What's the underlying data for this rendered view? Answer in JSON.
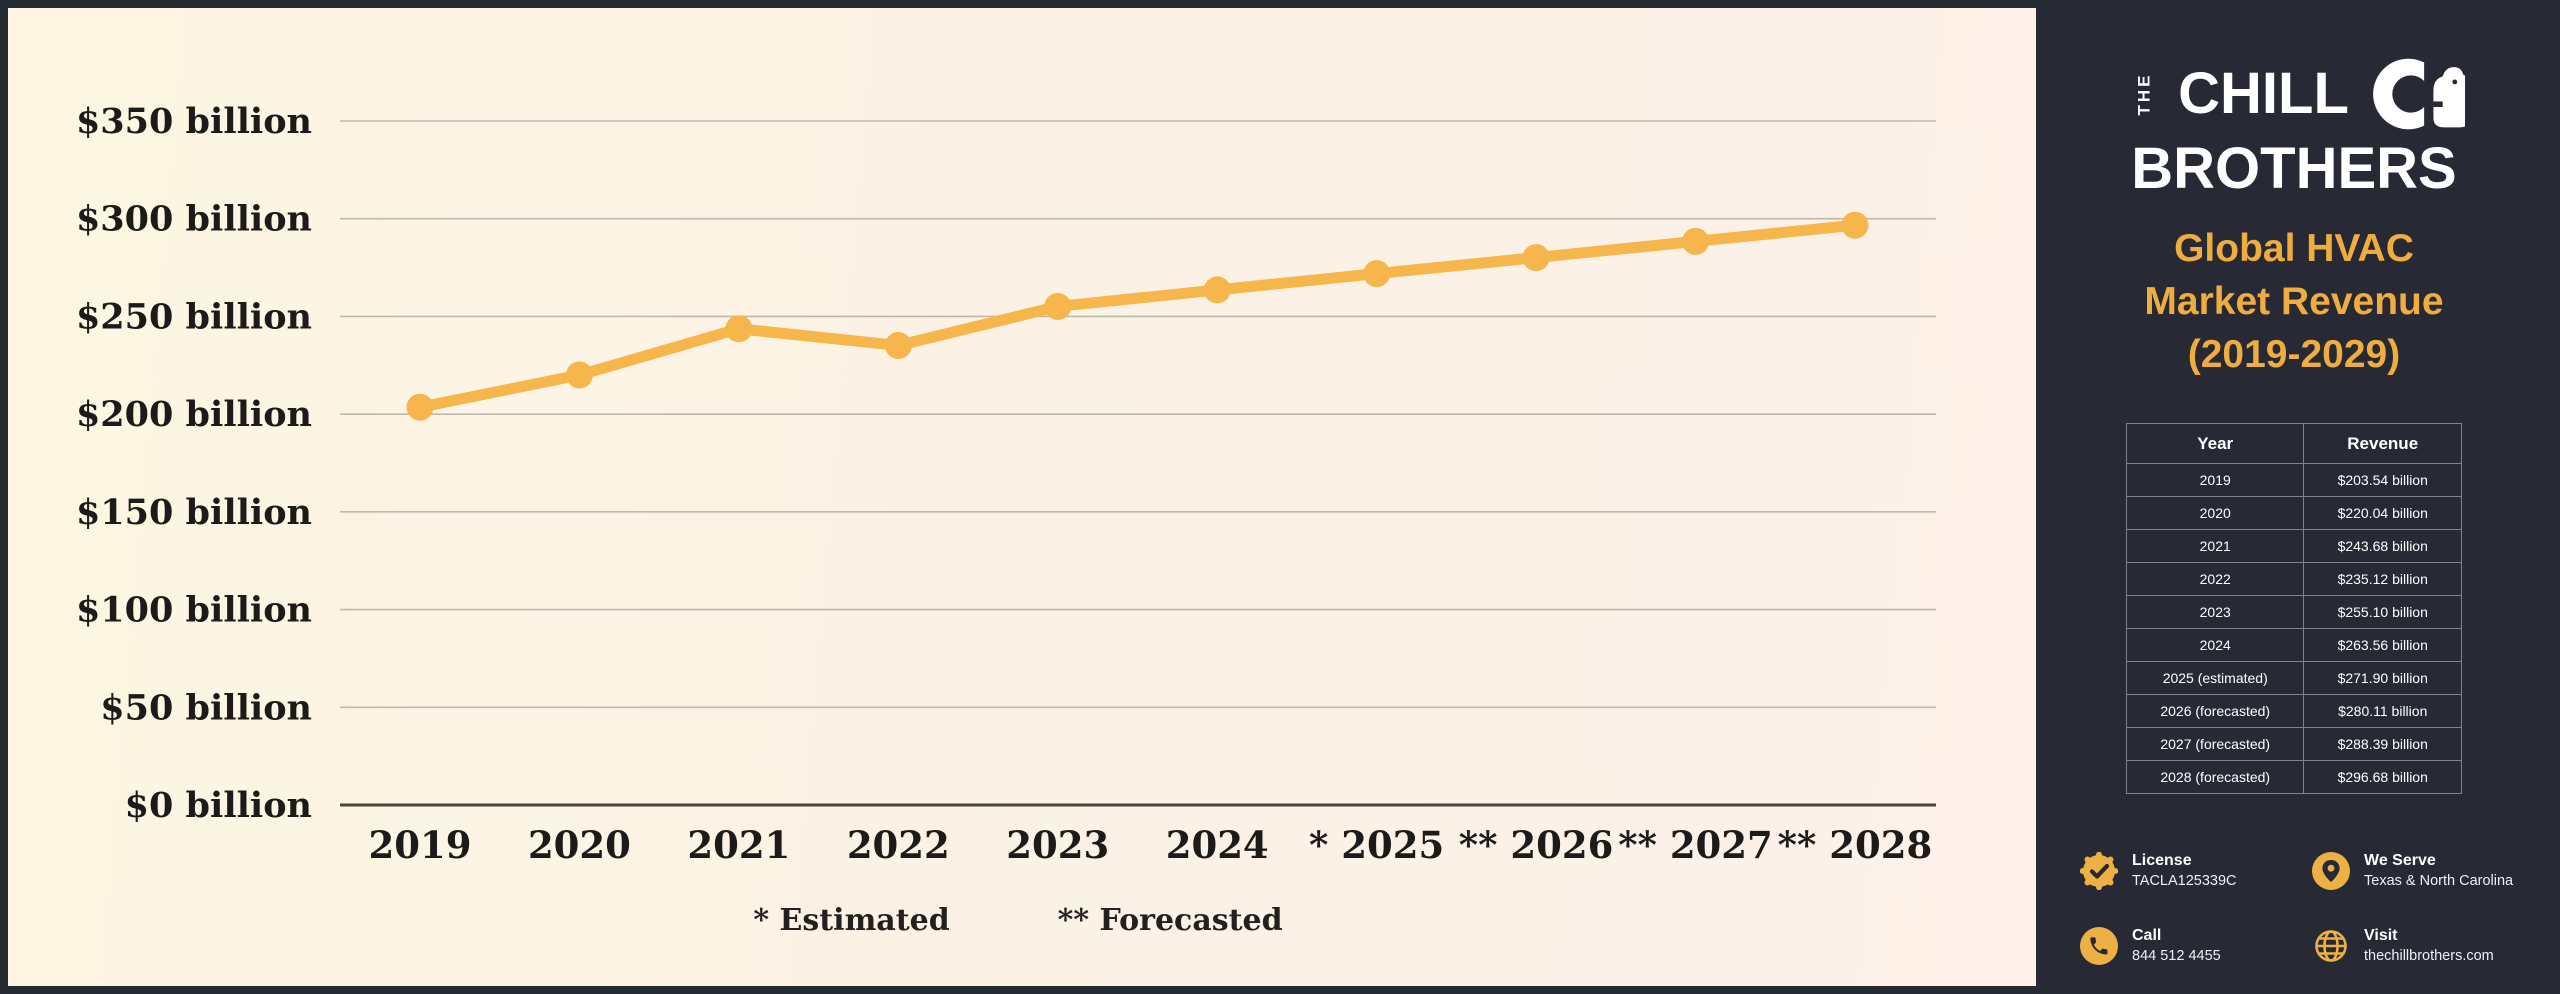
{
  "chart_data": {
    "type": "line",
    "title": "Global HVAC Market Revenue (2019-2029)",
    "categories": [
      "2019",
      "2020",
      "2021",
      "2022",
      "2023",
      "2024",
      "2025",
      "2026",
      "2027",
      "2028"
    ],
    "x_tick_labels": [
      "2019",
      "2020",
      "2021",
      "2022",
      "2023",
      "2024",
      "* 2025",
      "** 2026",
      "** 2027",
      "** 2028"
    ],
    "series": [
      {
        "name": "Global HVAC market revenue",
        "unit": "$ billion",
        "values": [
          203.54,
          220.04,
          243.68,
          235.12,
          255.1,
          263.56,
          271.9,
          280.11,
          288.39,
          296.68
        ]
      }
    ],
    "yticks": [
      0,
      50,
      100,
      150,
      200,
      250,
      300,
      350
    ],
    "ytick_label_prefix": "$",
    "ytick_label_suffix": " billion",
    "ylim": [
      0,
      380
    ],
    "grid": true,
    "legend": {
      "position": "bottom",
      "items": [
        "* Estimated",
        "** Forecasted"
      ]
    },
    "line_color": "#f7b64c",
    "marker_color": "#f7b64c",
    "grid_color": "#bfb8ac",
    "axis_color": "#4b453c",
    "axis_text_color": "#1c1b19"
  },
  "panel": {
    "logo": {
      "the": "THE",
      "line1": "CHILL",
      "line2": "BROTHERS",
      "icon": "chill-brothers-bear-icon"
    },
    "title_lines": [
      "Global HVAC",
      "Market Revenue",
      "(2019-2029)"
    ],
    "table": {
      "columns": [
        "Year",
        "Revenue"
      ],
      "rows": [
        [
          "2019",
          "$203.54 billion"
        ],
        [
          "2020",
          "$220.04 billion"
        ],
        [
          "2021",
          "$243.68 billion"
        ],
        [
          "2022",
          "$235.12 billion"
        ],
        [
          "2023",
          "$255.10 billion"
        ],
        [
          "2024",
          "$263.56 billion"
        ],
        [
          "2025 (estimated)",
          "$271.90 billion"
        ],
        [
          "2026 (forecasted)",
          "$280.11 billion"
        ],
        [
          "2027 (forecasted)",
          "$288.39 billion"
        ],
        [
          "2028 (forecasted)",
          "$296.68 billion"
        ]
      ]
    },
    "contacts": [
      {
        "icon": "license-badge-icon",
        "label": "License",
        "value": "TACLA125339C"
      },
      {
        "icon": "location-pin-icon",
        "label": "We Serve",
        "value": "Texas & North Carolina"
      },
      {
        "icon": "phone-icon",
        "label": "Call",
        "value": "844 512 4455"
      },
      {
        "icon": "globe-icon",
        "label": "Visit",
        "value": "thechillbrothers.com"
      }
    ],
    "colors": {
      "panel_bg": "#272a34",
      "accent_gold": "#f0ad3f",
      "icon_gold": "#edb045",
      "table_border": "#81848e"
    }
  }
}
